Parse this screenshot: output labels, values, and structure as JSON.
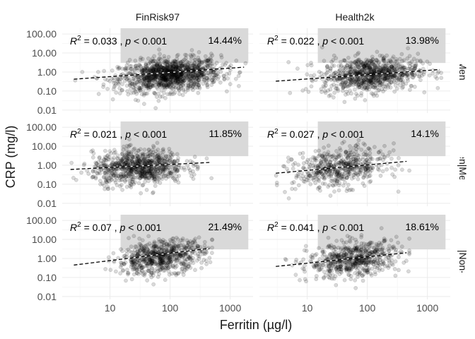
{
  "chart_data": {
    "type": "scatter",
    "title": "",
    "xlabel": "Ferritin (µg/l)",
    "ylabel": "CRP (mg/l)",
    "x_scale": "log10",
    "y_scale": "log10",
    "xlim": [
      1.6,
      2400
    ],
    "ylim": [
      0.007,
      200
    ],
    "x_ticks": [
      10,
      100,
      1000
    ],
    "x_tick_labels": [
      "10",
      "100",
      "1000"
    ],
    "y_ticks": [
      0.01,
      0.1,
      1,
      10,
      100
    ],
    "y_tick_labels": [
      "0.01",
      "0.10",
      "1.00",
      "10.00",
      "100.00"
    ],
    "grid": true,
    "legend": "none",
    "columns": [
      "FinRisk97",
      "Health2k"
    ],
    "rows": [
      "Men",
      "Women|Menstr",
      "Women|Non-mens"
    ],
    "high_region": {
      "x_from": 15,
      "x_to": 2000,
      "y_from": 3,
      "y_to": 200,
      "color": "#d9d9d9"
    },
    "point_color": "#000000",
    "point_opacity": 0.15,
    "panels": [
      {
        "column": "FinRisk97",
        "row": "Men",
        "r2": "0.033",
        "p": "0.001",
        "pct": "14.44%",
        "fit": {
          "x1": 2.5,
          "y1": 0.42,
          "x2": 1700,
          "y2": 1.8
        },
        "n_points": 1300,
        "x_center": 100,
        "x_spread": 0.42,
        "x_range": [
          2.2,
          1800
        ],
        "y_center": 0.7,
        "y_spread": 0.42
      },
      {
        "column": "Health2k",
        "row": "Men",
        "r2": "0.022",
        "p": "0.001",
        "pct": "13.98%",
        "fit": {
          "x1": 3,
          "y1": 0.33,
          "x2": 1600,
          "y2": 1.35
        },
        "n_points": 900,
        "x_center": 110,
        "x_spread": 0.4,
        "x_range": [
          3,
          1700
        ],
        "y_center": 0.75,
        "y_spread": 0.45
      },
      {
        "column": "FinRisk97",
        "row": "Women|Menstr",
        "r2": "0.021",
        "p": "0.001",
        "pct": "11.85%",
        "fit": {
          "x1": 2.2,
          "y1": 0.6,
          "x2": 450,
          "y2": 1.4
        },
        "n_points": 850,
        "x_center": 30,
        "x_spread": 0.38,
        "x_range": [
          2.2,
          500
        ],
        "y_center": 0.8,
        "y_spread": 0.45
      },
      {
        "column": "Health2k",
        "row": "Women|Menstr",
        "r2": "0.027",
        "p": "0.001",
        "pct": "14.1%",
        "fit": {
          "x1": 3,
          "y1": 0.38,
          "x2": 450,
          "y2": 1.6
        },
        "n_points": 550,
        "x_center": 35,
        "x_spread": 0.38,
        "x_range": [
          3,
          500
        ],
        "y_center": 0.7,
        "y_spread": 0.5
      },
      {
        "column": "FinRisk97",
        "row": "Women|Non-mens",
        "r2": "0.07",
        "p": "0.001",
        "pct": "21.49%",
        "fit": {
          "x1": 2.5,
          "y1": 0.45,
          "x2": 450,
          "y2": 3.4
        },
        "n_points": 700,
        "x_center": 70,
        "x_spread": 0.36,
        "x_range": [
          2.5,
          500
        ],
        "y_center": 1.2,
        "y_spread": 0.42
      },
      {
        "column": "Health2k",
        "row": "Women|Non-mens",
        "r2": "0.041",
        "p": "0.001",
        "pct": "18.61%",
        "fit": {
          "x1": 3,
          "y1": 0.38,
          "x2": 450,
          "y2": 2.0
        },
        "n_points": 650,
        "x_center": 60,
        "x_spread": 0.38,
        "x_range": [
          3,
          500
        ],
        "y_center": 0.9,
        "y_spread": 0.45
      }
    ]
  }
}
